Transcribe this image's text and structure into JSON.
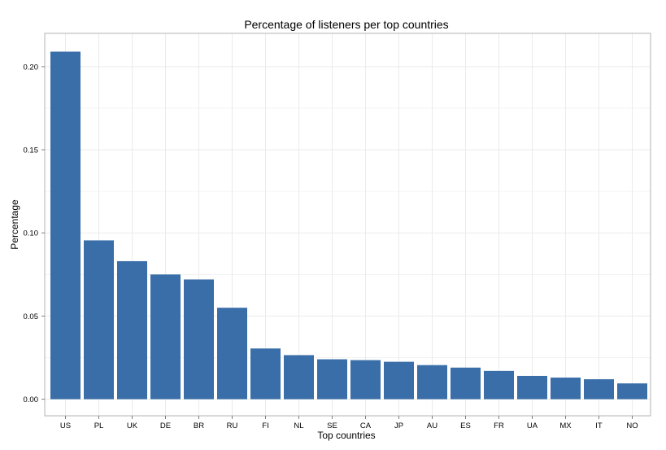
{
  "chart_data": {
    "type": "bar",
    "title": "Percentage of listeners per top countries",
    "xlabel": "Top countries",
    "ylabel": "Percentage",
    "categories": [
      "US",
      "PL",
      "UK",
      "DE",
      "BR",
      "RU",
      "FI",
      "NL",
      "SE",
      "CA",
      "JP",
      "AU",
      "ES",
      "FR",
      "UA",
      "MX",
      "IT",
      "NO"
    ],
    "values": [
      0.209,
      0.0955,
      0.083,
      0.075,
      0.072,
      0.055,
      0.0305,
      0.0265,
      0.024,
      0.0235,
      0.0225,
      0.0205,
      0.019,
      0.017,
      0.014,
      0.013,
      0.012,
      0.0095
    ],
    "ylim": [
      -0.01,
      0.22
    ],
    "yticks": [
      0,
      0.05,
      0.1,
      0.15,
      0.2
    ],
    "ytick_labels": [
      "0.00",
      "0.05",
      "0.10",
      "0.15",
      "0.20"
    ],
    "grid": true,
    "bar_color": "#3A6EA8",
    "grid_color": "#EBEBEB",
    "border_color": "#B3B3B3"
  }
}
